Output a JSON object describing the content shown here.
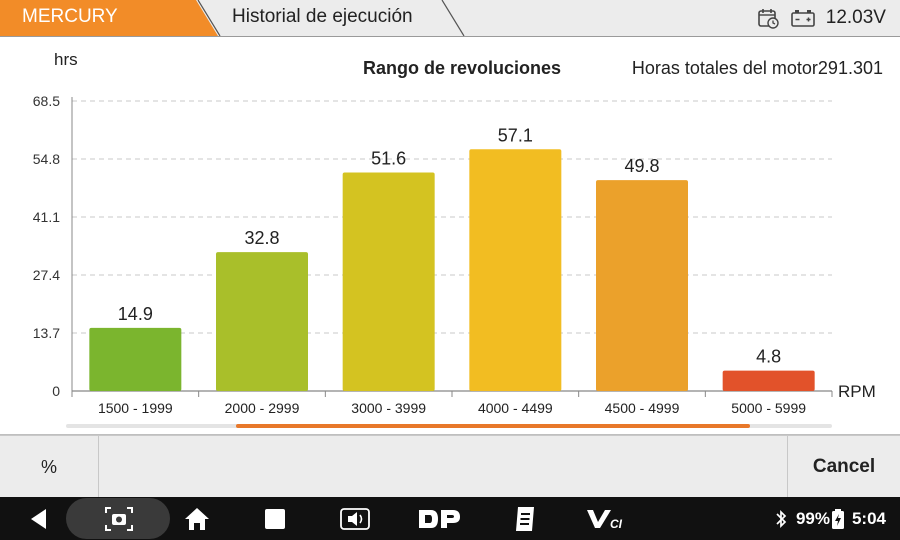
{
  "header": {
    "brand": "MERCURY",
    "title": "Historial de ejecución",
    "voltage": "12.03V",
    "calendar_icon": "calendar-clock-icon",
    "battery_icon": "car-battery-icon",
    "brand_color": "#f28c28"
  },
  "chart_header": {
    "title": "Rango de revoluciones",
    "total_label": "Horas totales del motor",
    "total_value": "291.301"
  },
  "chart_data": {
    "type": "bar",
    "ylabel": "hrs",
    "xlabel": "RPM",
    "ylim": [
      0,
      68.5
    ],
    "yticks": [
      "0",
      "13.7",
      "27.4",
      "41.1",
      "54.8",
      "68.5"
    ],
    "categories": [
      "1500 - 1999",
      "2000 - 2999",
      "3000 - 3999",
      "4000 - 4499",
      "4500 - 4999",
      "5000 - 5999"
    ],
    "values": [
      14.9,
      32.8,
      51.6,
      57.1,
      49.8,
      4.8
    ],
    "value_labels": [
      "14.9",
      "32.8",
      "51.6",
      "57.1",
      "49.8",
      "4.8"
    ],
    "colors": [
      "#7bb52e",
      "#a9bf2a",
      "#d4c321",
      "#f2bd22",
      "#eba12b",
      "#e2522a"
    ],
    "grid": true
  },
  "footer": {
    "percent_label": "%",
    "cancel_label": "Cancel"
  },
  "system_bar": {
    "battery": "99%",
    "time": "5:04",
    "icons": [
      "back-icon",
      "screenshot-icon",
      "home-icon",
      "recents-icon",
      "volume-icon",
      "dp-icon",
      "report-icon",
      "vci-icon",
      "bluetooth-icon",
      "battery-icon"
    ]
  }
}
